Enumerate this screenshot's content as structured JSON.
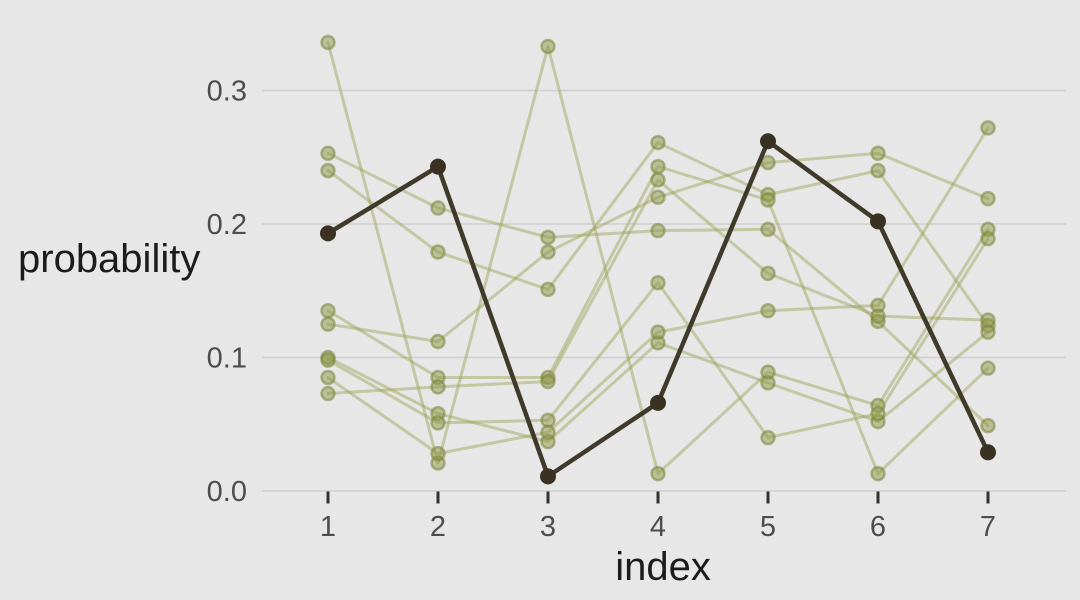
{
  "chart_data": {
    "type": "line",
    "title": "",
    "xlabel": "index",
    "ylabel": "probability",
    "x": [
      1,
      2,
      3,
      4,
      5,
      6,
      7
    ],
    "x_tick_labels": [
      "1",
      "2",
      "3",
      "4",
      "5",
      "6",
      "7"
    ],
    "y_ticks": [
      0.0,
      0.1,
      0.2,
      0.3
    ],
    "y_tick_labels": [
      "0.0",
      "0.1",
      "0.2",
      "0.3"
    ],
    "xlim": [
      1,
      7
    ],
    "ylim": [
      0.0,
      0.357
    ],
    "grid": "horizontal-major-only",
    "legend_position": "none",
    "highlight_series": {
      "name": "highlighted-line",
      "values": [
        0.193,
        0.243,
        0.011,
        0.066,
        0.262,
        0.202,
        0.029
      ]
    },
    "series": [
      {
        "name": "line-1",
        "values": [
          0.336,
          0.021,
          0.333,
          0.013,
          0.089,
          0.064,
          0.196
        ]
      },
      {
        "name": "line-2",
        "values": [
          0.253,
          0.212,
          0.19,
          0.195,
          0.196,
          0.127,
          0.049
        ]
      },
      {
        "name": "line-3",
        "values": [
          0.24,
          0.179,
          0.151,
          0.261,
          0.222,
          0.24,
          0.124
        ]
      },
      {
        "name": "line-4",
        "values": [
          0.135,
          0.085,
          0.085,
          0.243,
          0.218,
          0.013,
          0.092
        ]
      },
      {
        "name": "line-5",
        "values": [
          0.125,
          0.112,
          0.179,
          0.22,
          0.246,
          0.253,
          0.219
        ]
      },
      {
        "name": "line-6",
        "values": [
          0.1,
          0.058,
          0.037,
          0.111,
          0.081,
          0.052,
          0.119
        ]
      },
      {
        "name": "line-7",
        "values": [
          0.098,
          0.051,
          0.053,
          0.156,
          0.04,
          0.058,
          0.189
        ]
      },
      {
        "name": "line-8",
        "values": [
          0.085,
          0.028,
          0.044,
          0.119,
          0.135,
          0.139,
          0.272
        ]
      },
      {
        "name": "line-9",
        "values": [
          0.073,
          0.078,
          0.082,
          0.233,
          0.163,
          0.131,
          0.128
        ]
      }
    ],
    "colors": {
      "background": "#e7e7e7",
      "gridline": "#cfcfcf",
      "light_line": "#97a050",
      "light_point_fill": "#8e9747",
      "light_point_stroke": "#79853a",
      "light_alpha": 0.45,
      "dark_line": "#403a2a",
      "dark_point": "#393222",
      "tick_mark": "#333333",
      "tick_label": "#4d4d4d",
      "axis_title": "#1c1c1c"
    }
  }
}
